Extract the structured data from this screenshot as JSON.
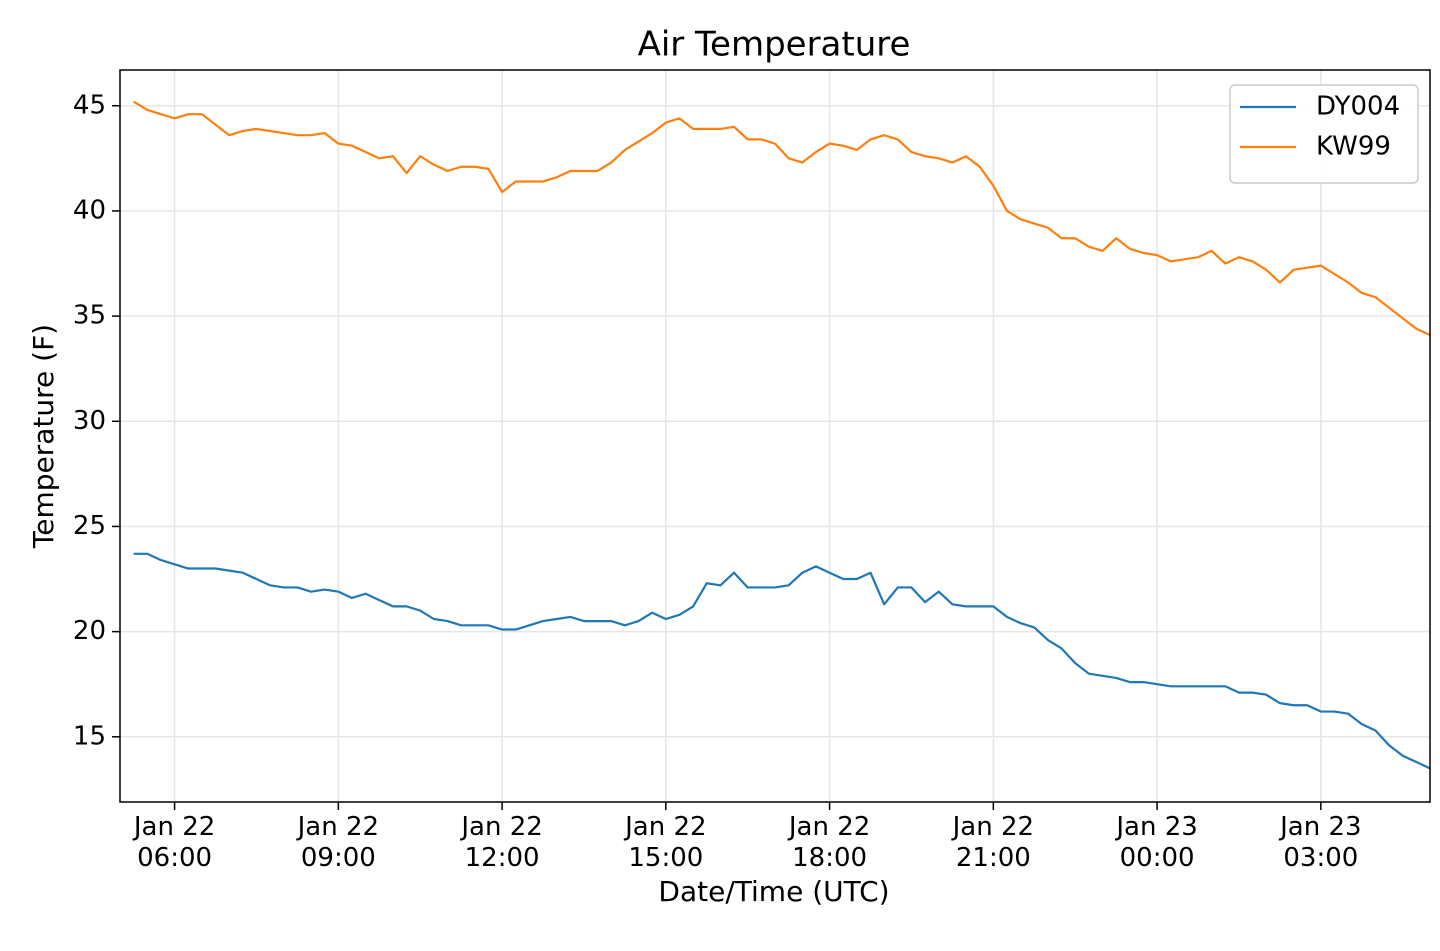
{
  "chart_data": {
    "type": "line",
    "title": "Air Temperature",
    "x_label": "Date/Time (UTC)",
    "y_label": "Temperature (F)",
    "x": [
      "Jan 22 05:15",
      "Jan 22 05:30",
      "Jan 22 05:45",
      "Jan 22 06:00",
      "Jan 22 06:15",
      "Jan 22 06:30",
      "Jan 22 06:45",
      "Jan 22 07:00",
      "Jan 22 07:15",
      "Jan 22 07:30",
      "Jan 22 07:45",
      "Jan 22 08:00",
      "Jan 22 08:15",
      "Jan 22 08:30",
      "Jan 22 08:45",
      "Jan 22 09:00",
      "Jan 22 09:15",
      "Jan 22 09:30",
      "Jan 22 09:45",
      "Jan 22 10:00",
      "Jan 22 10:15",
      "Jan 22 10:30",
      "Jan 22 10:45",
      "Jan 22 11:00",
      "Jan 22 11:15",
      "Jan 22 11:30",
      "Jan 22 11:45",
      "Jan 22 12:00",
      "Jan 22 12:15",
      "Jan 22 12:30",
      "Jan 22 12:45",
      "Jan 22 13:00",
      "Jan 22 13:15",
      "Jan 22 13:30",
      "Jan 22 13:45",
      "Jan 22 14:00",
      "Jan 22 14:15",
      "Jan 22 14:30",
      "Jan 22 14:45",
      "Jan 22 15:00",
      "Jan 22 15:15",
      "Jan 22 15:30",
      "Jan 22 15:45",
      "Jan 22 16:00",
      "Jan 22 16:15",
      "Jan 22 16:30",
      "Jan 22 16:45",
      "Jan 22 17:00",
      "Jan 22 17:15",
      "Jan 22 17:30",
      "Jan 22 17:45",
      "Jan 22 18:00",
      "Jan 22 18:15",
      "Jan 22 18:30",
      "Jan 22 18:45",
      "Jan 22 19:00",
      "Jan 22 19:15",
      "Jan 22 19:30",
      "Jan 22 19:45",
      "Jan 22 20:00",
      "Jan 22 20:15",
      "Jan 22 20:30",
      "Jan 22 20:45",
      "Jan 22 21:00",
      "Jan 22 21:15",
      "Jan 22 21:30",
      "Jan 22 21:45",
      "Jan 22 22:00",
      "Jan 22 22:15",
      "Jan 22 22:30",
      "Jan 22 22:45",
      "Jan 22 23:00",
      "Jan 22 23:15",
      "Jan 22 23:30",
      "Jan 22 23:45",
      "Jan 23 00:00",
      "Jan 23 00:15",
      "Jan 23 00:30",
      "Jan 23 00:45",
      "Jan 23 01:00",
      "Jan 23 01:15",
      "Jan 23 01:30",
      "Jan 23 01:45",
      "Jan 23 02:00",
      "Jan 23 02:15",
      "Jan 23 02:30",
      "Jan 23 02:45",
      "Jan 23 03:00",
      "Jan 23 03:15",
      "Jan 23 03:30",
      "Jan 23 03:45",
      "Jan 23 04:00",
      "Jan 23 04:15",
      "Jan 23 04:30",
      "Jan 23 04:45",
      "Jan 23 05:00"
    ],
    "series": [
      {
        "name": "DY004",
        "color": "#1f77b4",
        "values": [
          23.7,
          23.7,
          23.4,
          23.2,
          23.0,
          23.0,
          23.0,
          22.9,
          22.8,
          22.5,
          22.2,
          22.1,
          22.1,
          21.9,
          22.0,
          21.9,
          21.6,
          21.8,
          21.5,
          21.2,
          21.2,
          21.0,
          20.6,
          20.5,
          20.3,
          20.3,
          20.3,
          20.1,
          20.1,
          20.3,
          20.5,
          20.6,
          20.7,
          20.5,
          20.5,
          20.5,
          20.3,
          20.5,
          20.9,
          20.6,
          20.8,
          21.2,
          22.3,
          22.2,
          22.8,
          22.1,
          22.1,
          22.1,
          22.2,
          22.8,
          23.1,
          22.8,
          22.5,
          22.5,
          22.8,
          21.3,
          22.1,
          22.1,
          21.4,
          21.9,
          21.3,
          21.2,
          21.2,
          21.2,
          20.7,
          20.4,
          20.2,
          19.6,
          19.2,
          18.5,
          18.0,
          17.9,
          17.8,
          17.6,
          17.6,
          17.5,
          17.4,
          17.4,
          17.4,
          17.4,
          17.4,
          17.1,
          17.1,
          17.0,
          16.6,
          16.5,
          16.5,
          16.2,
          16.2,
          16.1,
          15.6,
          15.3,
          14.6,
          14.1,
          13.8,
          13.5
        ]
      },
      {
        "name": "KW99",
        "color": "#ff7f0e",
        "values": [
          45.2,
          44.8,
          44.6,
          44.4,
          44.6,
          44.6,
          44.1,
          43.6,
          43.8,
          43.9,
          43.8,
          43.7,
          43.6,
          43.6,
          43.7,
          43.2,
          43.1,
          42.8,
          42.5,
          42.6,
          41.8,
          42.6,
          42.2,
          41.9,
          42.1,
          42.1,
          42.0,
          40.9,
          41.4,
          41.4,
          41.4,
          41.6,
          41.9,
          41.9,
          41.9,
          42.3,
          42.9,
          43.3,
          43.7,
          44.2,
          44.4,
          43.9,
          43.9,
          43.9,
          44.0,
          43.4,
          43.4,
          43.2,
          42.5,
          42.3,
          42.8,
          43.2,
          43.1,
          42.9,
          43.4,
          43.6,
          43.4,
          42.8,
          42.6,
          42.5,
          42.3,
          42.6,
          42.1,
          41.2,
          40.0,
          39.6,
          39.4,
          39.2,
          38.7,
          38.7,
          38.3,
          38.1,
          38.7,
          38.2,
          38.0,
          37.9,
          37.6,
          37.7,
          37.8,
          38.1,
          37.5,
          37.8,
          37.6,
          37.2,
          36.6,
          37.2,
          37.3,
          37.4,
          37.0,
          36.6,
          36.1,
          35.9,
          35.4,
          34.9,
          34.4,
          34.1
        ]
      }
    ],
    "xlim": [
      "Jan 22 05:00",
      "Jan 23 05:00"
    ],
    "xticks": [
      {
        "value": "Jan 22 06:00",
        "label": "Jan 22\n06:00"
      },
      {
        "value": "Jan 22 09:00",
        "label": "Jan 22\n09:00"
      },
      {
        "value": "Jan 22 12:00",
        "label": "Jan 22\n12:00"
      },
      {
        "value": "Jan 22 15:00",
        "label": "Jan 22\n15:00"
      },
      {
        "value": "Jan 22 18:00",
        "label": "Jan 22\n18:00"
      },
      {
        "value": "Jan 22 21:00",
        "label": "Jan 22\n21:00"
      },
      {
        "value": "Jan 23 00:00",
        "label": "Jan 23\n00:00"
      },
      {
        "value": "Jan 23 03:00",
        "label": "Jan 23\n03:00"
      }
    ],
    "ylim": [
      11.9,
      46.7
    ],
    "yticks": [
      15,
      20,
      25,
      30,
      35,
      40,
      45
    ],
    "grid": true,
    "legend": "upper right"
  }
}
